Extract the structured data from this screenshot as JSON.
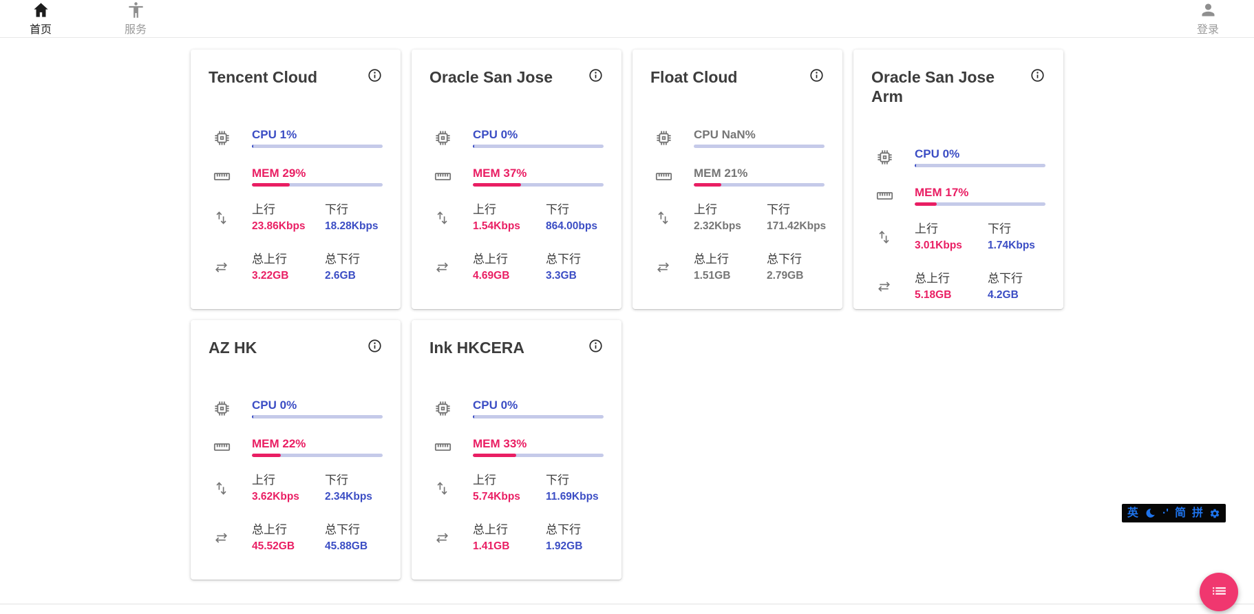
{
  "nav": {
    "home": {
      "label": "首页"
    },
    "services": {
      "label": "服务"
    },
    "login": {
      "label": "登录"
    }
  },
  "labels": {
    "up": "上行",
    "down": "下行",
    "total_up": "总上行",
    "total_down": "总下行"
  },
  "servers": [
    {
      "name": "Tencent Cloud",
      "cpu_text": "CPU 1%",
      "cpu_pct": 1,
      "mem_text": "MEM 29%",
      "mem_pct": 29,
      "online": true,
      "up": "23.86Kbps",
      "down": "18.28Kbps",
      "total_up": "3.22GB",
      "total_down": "2.6GB"
    },
    {
      "name": "Oracle San Jose",
      "cpu_text": "CPU 0%",
      "cpu_pct": 0,
      "mem_text": "MEM 37%",
      "mem_pct": 37,
      "online": true,
      "up": "1.54Kbps",
      "down": "864.00bps",
      "total_up": "4.69GB",
      "total_down": "3.3GB"
    },
    {
      "name": "Float Cloud",
      "cpu_text": "CPU NaN%",
      "cpu_pct": 0,
      "mem_text": "MEM 21%",
      "mem_pct": 21,
      "online": false,
      "up": "2.32Kbps",
      "down": "171.42Kbps",
      "total_up": "1.51GB",
      "total_down": "2.79GB"
    },
    {
      "name": "Oracle San Jose Arm",
      "cpu_text": "CPU 0%",
      "cpu_pct": 0,
      "mem_text": "MEM 17%",
      "mem_pct": 17,
      "online": true,
      "up": "3.01Kbps",
      "down": "1.74Kbps",
      "total_up": "5.18GB",
      "total_down": "4.2GB"
    },
    {
      "name": "AZ HK",
      "cpu_text": "CPU 0%",
      "cpu_pct": 0,
      "mem_text": "MEM 22%",
      "mem_pct": 22,
      "online": true,
      "up": "3.62Kbps",
      "down": "2.34Kbps",
      "total_up": "45.52GB",
      "total_down": "45.88GB"
    },
    {
      "name": "Ink HKCERA",
      "cpu_text": "CPU 0%",
      "cpu_pct": 0,
      "mem_text": "MEM 33%",
      "mem_pct": 33,
      "online": true,
      "up": "5.74Kbps",
      "down": "11.69Kbps",
      "total_up": "1.41GB",
      "total_down": "1.92GB"
    }
  ],
  "ime": {
    "lang": "英",
    "punct": "·'",
    "simplified": "简",
    "pinyin": "拼"
  },
  "colors": {
    "cpu_blue": "#3b4dc4",
    "mem_pink": "#e91e63",
    "track": "#c5cae9",
    "offline_gray": "#757575",
    "fab_pink": "#f0376f",
    "ime_blue": "#1e73eb"
  }
}
